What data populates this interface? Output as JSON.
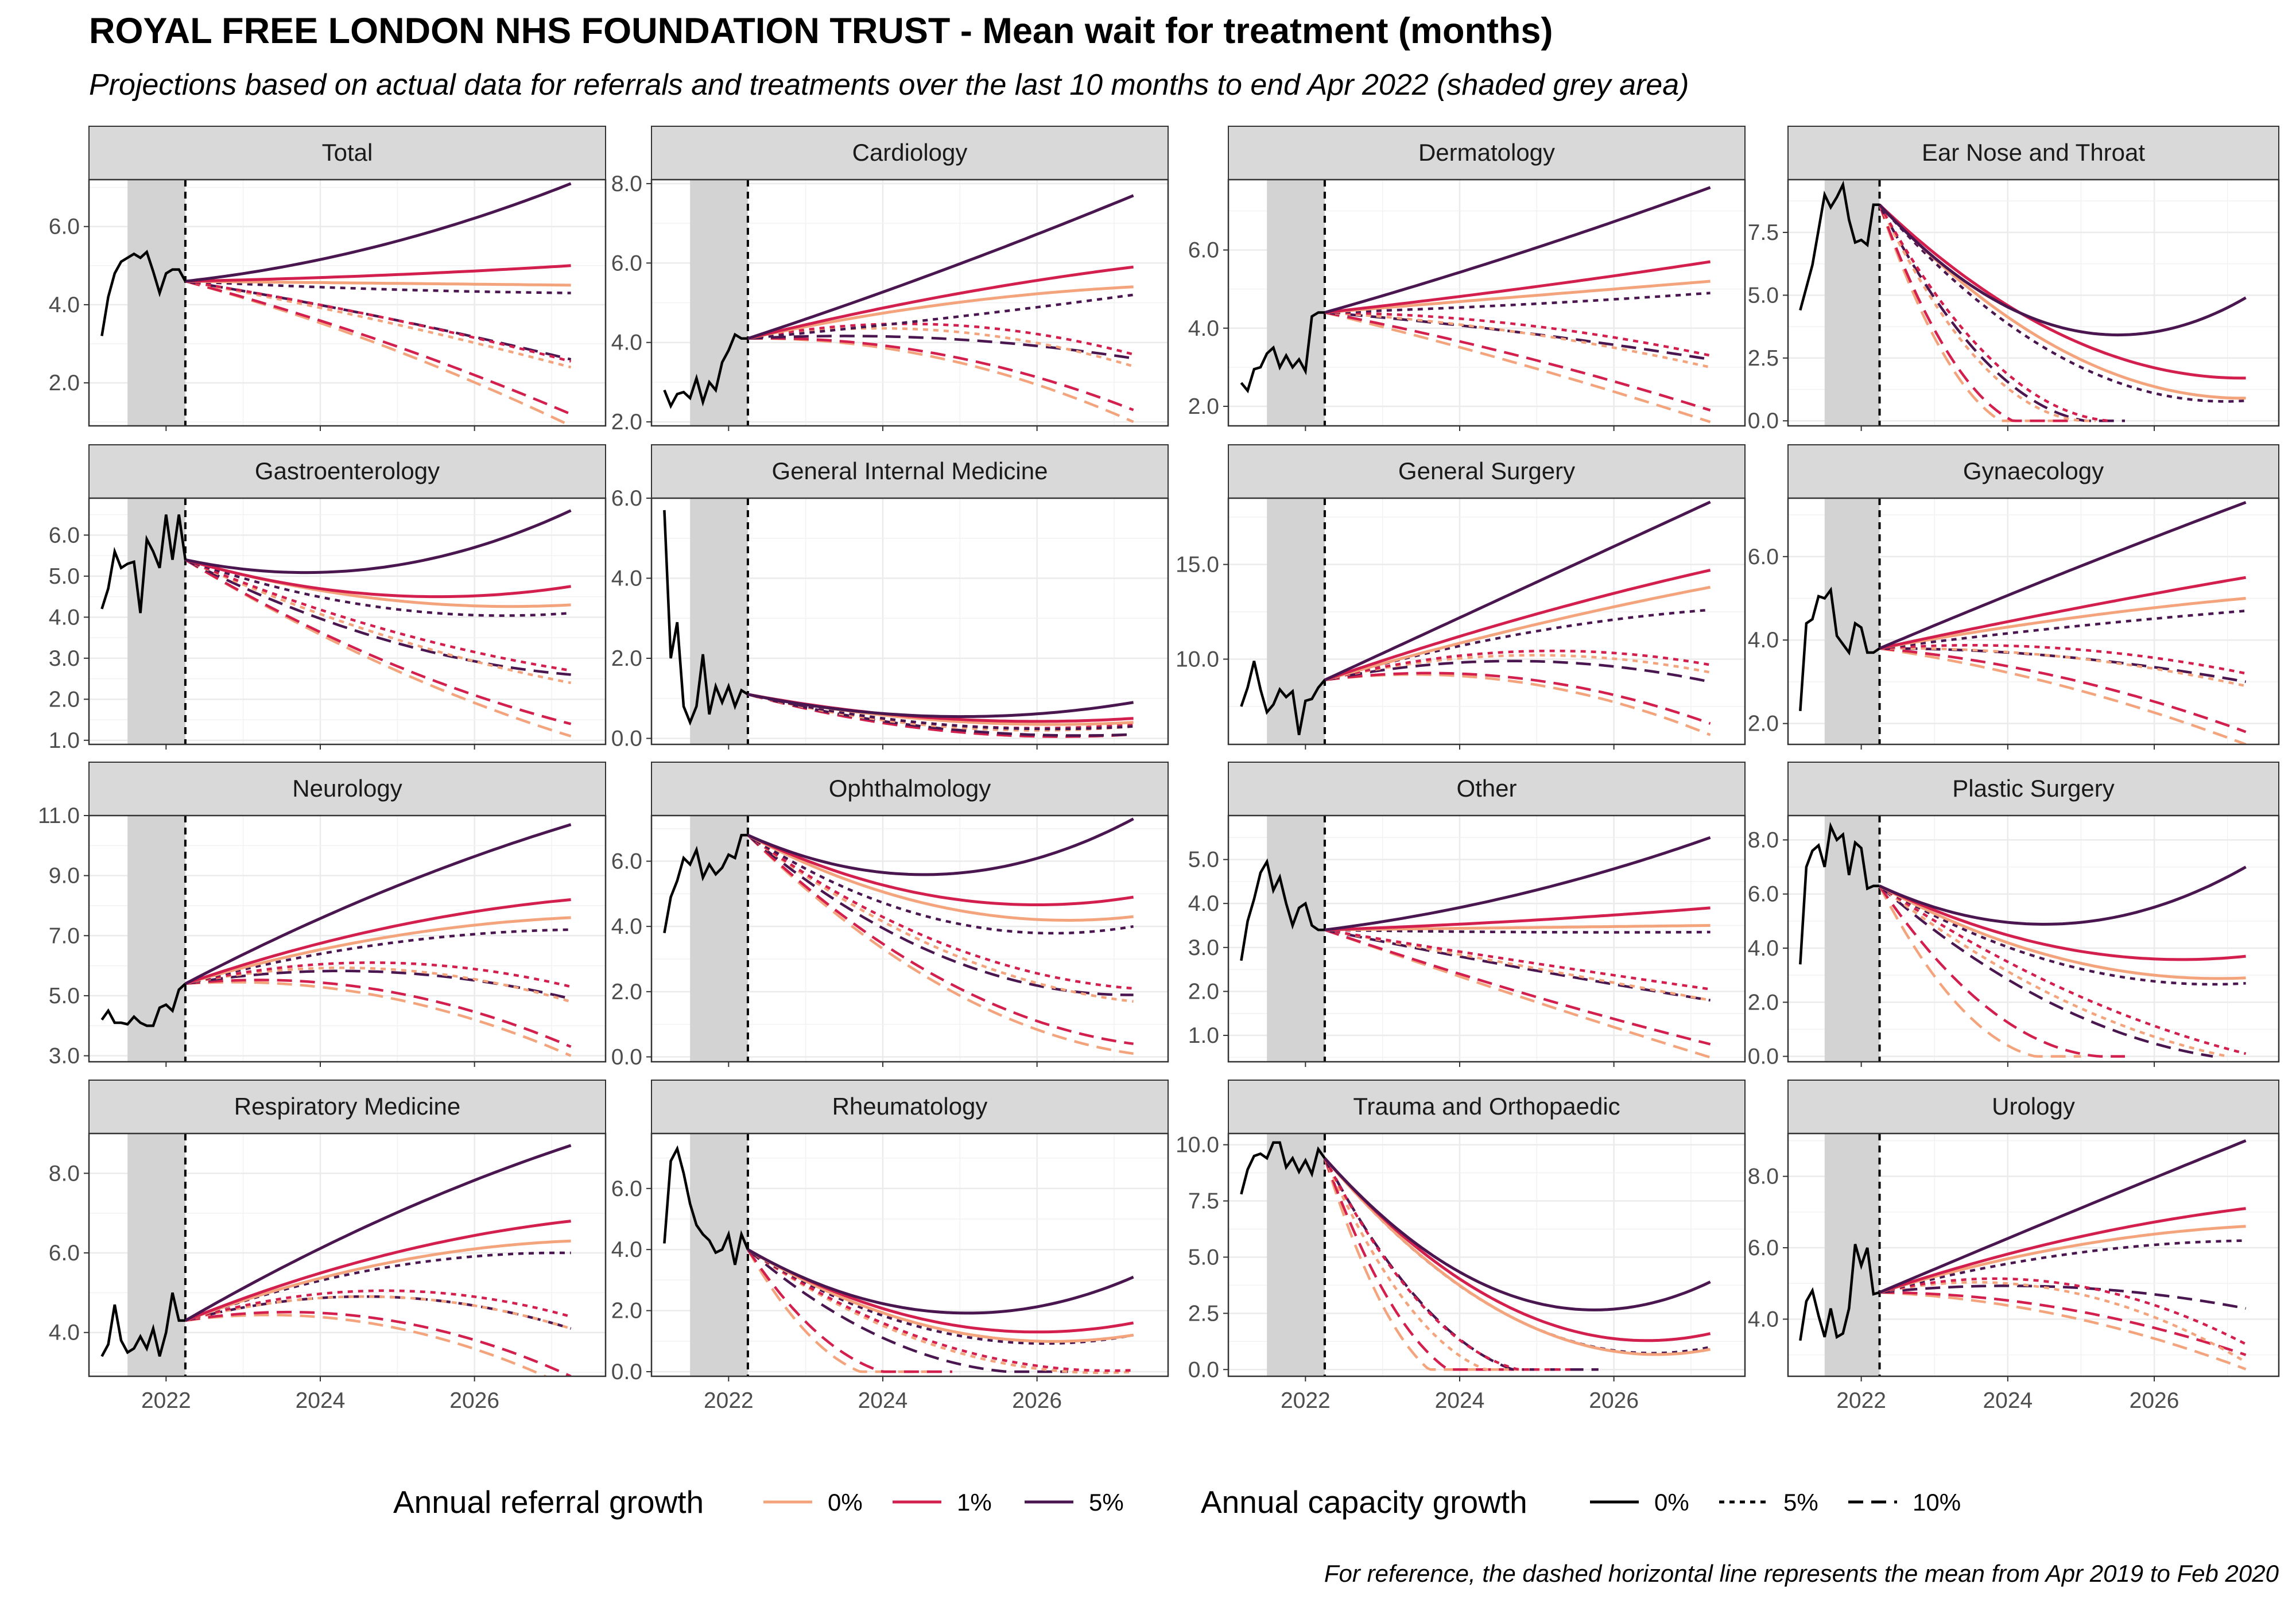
{
  "title": "ROYAL FREE LONDON NHS FOUNDATION TRUST - Mean wait for treatment (months)",
  "subtitle": "Projections based on actual data for referrals and treatments over the last 10 months to end Apr 2022 (shaded grey area)",
  "caption": "For reference, the dashed horizontal line represents the mean from Apr 2019 to Feb 2020",
  "colors": {
    "0%": "#f4a47c",
    "1%": "#d21f4d",
    "5%": "#4a1650",
    "actual": "#000000",
    "shade": "#d3d3d3",
    "strip": "#d9d9d9"
  },
  "chart_data": {
    "type": "line",
    "x_ticks": [
      "2022",
      "2024",
      "2026"
    ],
    "x_range": [
      2021.0,
      2027.7
    ],
    "shaded_period": [
      "2021-07",
      "2022-04"
    ],
    "projection_start": "2022-04",
    "projection_end": "2027-04",
    "legend": {
      "referral_title": "Annual referral growth",
      "referral_items": [
        "0%",
        "1%",
        "5%"
      ],
      "capacity_title": "Annual capacity growth",
      "capacity_items": [
        "0%",
        "5%",
        "10%"
      ]
    },
    "panels": [
      {
        "title": "Total",
        "ylim": [
          0.9,
          7.2
        ],
        "yticks": [
          "2.0",
          "4.0",
          "6.0"
        ],
        "actual": [
          3.2,
          4.2,
          4.8,
          5.1,
          5.2,
          5.3,
          5.2,
          5.35,
          4.85,
          4.3,
          4.8,
          4.9,
          4.9,
          4.6
        ],
        "endpoints": {
          "0_0": 4.5,
          "1_0": 5.0,
          "5_0": 7.1,
          "0_5": 2.4,
          "1_5": 2.55,
          "5_5": 4.3,
          "0_10": 0.9,
          "1_10": 1.2,
          "5_10": 2.6
        },
        "mid": {
          "0_0": 4.55,
          "1_0": 4.75,
          "5_0": 5.5,
          "0_5": 3.6,
          "1_5": 3.7,
          "5_5": 4.4,
          "0_10": 3.0,
          "1_10": 3.1,
          "5_10": 3.7
        }
      },
      {
        "title": "Cardiology",
        "ylim": [
          1.9,
          8.1
        ],
        "yticks": [
          "2.0",
          "4.0",
          "6.0",
          "8.0"
        ],
        "actual": [
          2.8,
          2.4,
          2.7,
          2.75,
          2.6,
          3.1,
          2.5,
          3.0,
          2.8,
          3.5,
          3.8,
          4.2,
          4.1,
          4.1
        ],
        "endpoints": {
          "0_0": 5.4,
          "1_0": 5.9,
          "5_0": 7.7,
          "0_5": 3.4,
          "1_5": 3.7,
          "5_5": 5.2,
          "0_10": 2.0,
          "1_10": 2.3,
          "5_10": 3.6
        },
        "mid": {
          "0_0": 4.95,
          "1_0": 5.15,
          "5_0": 5.8,
          "0_5": 4.3,
          "1_5": 4.45,
          "5_5": 4.6,
          "0_10": 3.6,
          "1_10": 3.7,
          "5_10": 4.1
        }
      },
      {
        "title": "Dermatology",
        "ylim": [
          1.5,
          7.8
        ],
        "yticks": [
          "2.0",
          "4.0",
          "6.0"
        ],
        "actual": [
          2.6,
          2.4,
          2.95,
          3.0,
          3.35,
          3.5,
          3.0,
          3.3,
          3.0,
          3.2,
          2.9,
          4.3,
          4.4,
          4.4
        ],
        "endpoints": {
          "0_0": 5.2,
          "1_0": 5.7,
          "5_0": 7.6,
          "0_5": 3.0,
          "1_5": 3.3,
          "5_5": 4.9,
          "0_10": 1.6,
          "1_10": 1.9,
          "5_10": 3.2
        },
        "mid": {
          "0_0": 4.8,
          "1_0": 5.0,
          "5_0": 5.9,
          "0_5": 3.9,
          "1_5": 4.1,
          "5_5": 4.6,
          "0_10": 3.1,
          "1_10": 3.3,
          "5_10": 3.9
        }
      },
      {
        "title": "Ear Nose and Throat",
        "ylim": [
          -0.2,
          9.6
        ],
        "yticks": [
          "0.0",
          "2.5",
          "5.0",
          "7.5"
        ],
        "actual": [
          4.4,
          5.3,
          6.2,
          7.6,
          9.0,
          8.5,
          8.9,
          9.4,
          8.0,
          7.1,
          7.2,
          7.0,
          8.6,
          8.6
        ],
        "endpoints": {
          "0_0": 0.9,
          "1_0": 1.7,
          "5_0": 4.9,
          "0_5": 0.0,
          "1_5": 0.0,
          "5_5": 0.8,
          "0_10": 0.0,
          "1_10": 0.0,
          "5_10": 0.0
        },
        "zero_at": {
          "0_5": 2025.2,
          "1_5": 2025.4,
          "0_10": 2024.8,
          "1_10": 2024.9,
          "5_10": 2025.6
        },
        "mid": {
          "0_0": 2.8,
          "1_0": 3.4,
          "5_0": 3.7,
          "0_5": 1.9,
          "1_5": 2.2,
          "5_5": 2.5,
          "0_10": 0.8,
          "1_10": 1.0,
          "5_10": 1.6
        }
      },
      {
        "title": "Gastroenterology",
        "ylim": [
          0.9,
          6.9
        ],
        "yticks": [
          "1.0",
          "2.0",
          "3.0",
          "4.0",
          "5.0",
          "6.0"
        ],
        "actual": [
          4.2,
          4.7,
          5.6,
          5.2,
          5.3,
          5.35,
          4.1,
          5.9,
          5.6,
          5.2,
          6.5,
          5.4,
          6.5,
          5.4
        ],
        "endpoints": {
          "0_0": 4.3,
          "1_0": 4.75,
          "5_0": 6.6,
          "0_5": 2.4,
          "1_5": 2.7,
          "5_5": 4.1,
          "0_10": 1.1,
          "1_10": 1.4,
          "5_10": 2.6
        },
        "mid": {
          "0_0": 4.45,
          "1_0": 4.55,
          "5_0": 5.2,
          "0_5": 3.6,
          "1_5": 3.75,
          "5_5": 4.25,
          "0_10": 2.9,
          "1_10": 3.0,
          "5_10": 3.5
        }
      },
      {
        "title": "General Internal Medicine",
        "ylim": [
          -0.15,
          6.0
        ],
        "yticks": [
          "0.0",
          "2.0",
          "4.0",
          "6.0"
        ],
        "actual": [
          5.7,
          2.0,
          2.9,
          0.8,
          0.4,
          0.8,
          2.1,
          0.6,
          1.3,
          0.9,
          1.3,
          0.8,
          1.2,
          1.1
        ],
        "endpoints": {
          "0_0": 0.4,
          "1_0": 0.5,
          "5_0": 0.9,
          "0_5": 0.3,
          "1_5": 0.35,
          "5_5": 0.3,
          "0_10": 0.1,
          "1_10": 0.1,
          "5_10": 0.1
        },
        "mid": {
          "0_0": 0.45,
          "1_0": 0.5,
          "5_0": 0.55,
          "0_5": 0.3,
          "1_5": 0.35,
          "5_5": 0.35,
          "0_10": 0.2,
          "1_10": 0.2,
          "5_10": 0.25
        }
      },
      {
        "title": "General Surgery",
        "ylim": [
          5.5,
          18.5
        ],
        "yticks": [
          "10.0",
          "15.0"
        ],
        "actual": [
          7.5,
          8.5,
          9.9,
          8.4,
          7.2,
          7.6,
          8.4,
          8.0,
          8.3,
          6.0,
          7.8,
          7.9,
          8.5,
          8.9
        ],
        "endpoints": {
          "0_0": 13.8,
          "1_0": 14.7,
          "5_0": 18.3,
          "0_5": 9.3,
          "1_5": 9.7,
          "5_5": 12.6,
          "0_10": 6.0,
          "1_10": 6.6,
          "5_10": 8.8
        },
        "mid": {
          "0_0": 11.6,
          "1_0": 12.1,
          "5_0": 13.6,
          "0_5": 10.2,
          "1_5": 10.4,
          "5_5": 11.3,
          "0_10": 8.8,
          "1_10": 9.0,
          "5_10": 9.9
        }
      },
      {
        "title": "Gynaecology",
        "ylim": [
          1.5,
          7.4
        ],
        "yticks": [
          "2.0",
          "4.0",
          "6.0"
        ],
        "actual": [
          2.3,
          4.4,
          4.5,
          5.05,
          5.0,
          5.2,
          4.1,
          3.9,
          3.7,
          4.4,
          4.3,
          3.7,
          3.7,
          3.8
        ],
        "endpoints": {
          "0_0": 5.0,
          "1_0": 5.5,
          "5_0": 7.3,
          "0_5": 2.9,
          "1_5": 3.2,
          "5_5": 4.7,
          "0_10": 1.5,
          "1_10": 1.8,
          "5_10": 3.0
        },
        "mid": {
          "0_0": 4.5,
          "1_0": 4.7,
          "5_0": 5.6,
          "0_5": 3.6,
          "1_5": 3.8,
          "5_5": 4.3,
          "0_10": 2.9,
          "1_10": 3.1,
          "5_10": 3.6
        }
      },
      {
        "title": "Neurology",
        "ylim": [
          2.8,
          11.0
        ],
        "yticks": [
          "3.0",
          "5.0",
          "7.0",
          "9.0",
          "11.0"
        ],
        "actual": [
          4.2,
          4.5,
          4.1,
          4.1,
          4.05,
          4.3,
          4.1,
          4.0,
          4.0,
          4.6,
          4.7,
          4.5,
          5.2,
          5.4
        ],
        "endpoints": {
          "0_0": 7.6,
          "1_0": 8.2,
          "5_0": 10.7,
          "0_5": 4.8,
          "1_5": 5.3,
          "5_5": 7.2,
          "0_10": 3.0,
          "1_10": 3.3,
          "5_10": 4.9
        },
        "mid": {
          "0_0": 6.9,
          "1_0": 7.2,
          "5_0": 8.4,
          "0_5": 5.9,
          "1_5": 6.1,
          "5_5": 6.7,
          "0_10": 5.0,
          "1_10": 5.2,
          "5_10": 5.8
        }
      },
      {
        "title": "Ophthalmology",
        "ylim": [
          -0.15,
          7.4
        ],
        "yticks": [
          "0.0",
          "2.0",
          "4.0",
          "6.0"
        ],
        "actual": [
          3.8,
          4.9,
          5.4,
          6.1,
          5.9,
          6.35,
          5.5,
          5.9,
          5.6,
          5.8,
          6.2,
          6.1,
          6.8,
          6.8
        ],
        "endpoints": {
          "0_0": 4.3,
          "1_0": 4.9,
          "5_0": 7.3,
          "0_5": 1.7,
          "1_5": 2.1,
          "5_5": 4.0,
          "0_10": 0.1,
          "1_10": 0.4,
          "5_10": 1.9
        },
        "mid": {
          "0_0": 4.6,
          "1_0": 4.9,
          "5_0": 5.6,
          "0_5": 3.3,
          "1_5": 3.5,
          "5_5": 4.2,
          "0_10": 2.2,
          "1_10": 2.4,
          "5_10": 3.1
        }
      },
      {
        "title": "Other",
        "ylim": [
          0.4,
          6.0
        ],
        "yticks": [
          "1.0",
          "2.0",
          "3.0",
          "4.0",
          "5.0"
        ],
        "actual": [
          2.7,
          3.6,
          4.1,
          4.7,
          4.95,
          4.3,
          4.6,
          4.0,
          3.5,
          3.9,
          4.0,
          3.5,
          3.4,
          3.4
        ],
        "endpoints": {
          "0_0": 3.5,
          "1_0": 3.9,
          "5_0": 5.5,
          "0_5": 1.8,
          "1_5": 2.05,
          "5_5": 3.35,
          "0_10": 0.5,
          "1_10": 0.8,
          "5_10": 1.8
        },
        "mid": {
          "0_0": 3.45,
          "1_0": 3.6,
          "5_0": 4.2,
          "0_5": 2.6,
          "1_5": 2.7,
          "5_5": 3.35,
          "0_10": 1.9,
          "1_10": 2.0,
          "5_10": 2.55
        }
      },
      {
        "title": "Plastic Surgery",
        "ylim": [
          -0.2,
          8.9
        ],
        "yticks": [
          "0.0",
          "2.0",
          "4.0",
          "6.0",
          "8.0"
        ],
        "actual": [
          3.4,
          7.0,
          7.6,
          7.8,
          7.0,
          8.5,
          8.0,
          8.2,
          6.7,
          7.9,
          7.7,
          6.2,
          6.3,
          6.3
        ],
        "endpoints": {
          "0_0": 2.9,
          "1_0": 3.7,
          "5_0": 7.0,
          "0_5": 0.0,
          "1_5": 0.1,
          "5_5": 2.7,
          "0_10": 0.0,
          "1_10": 0.0,
          "5_10": 0.0
        },
        "zero_at": {
          "0_10": 2025.0,
          "1_10": 2025.6,
          "5_10": 2026.8,
          "0_5": 2027.0
        },
        "mid": {
          "0_0": 3.6,
          "1_0": 4.0,
          "5_0": 4.9,
          "0_5": 2.2,
          "1_5": 2.5,
          "5_5": 3.4,
          "0_10": 1.0,
          "1_10": 1.3,
          "5_10": 2.0
        }
      },
      {
        "title": "Respiratory Medicine",
        "ylim": [
          2.9,
          9.0
        ],
        "yticks": [
          "4.0",
          "6.0",
          "8.0"
        ],
        "actual": [
          3.4,
          3.7,
          4.7,
          3.8,
          3.5,
          3.6,
          3.9,
          3.6,
          4.1,
          3.4,
          4.0,
          5.0,
          4.3,
          4.3
        ],
        "endpoints": {
          "0_0": 6.3,
          "1_0": 6.8,
          "5_0": 8.7,
          "0_5": 4.1,
          "1_5": 4.4,
          "5_5": 6.0,
          "0_10": 2.6,
          "1_10": 2.9,
          "5_10": 4.1
        },
        "mid": {
          "0_0": 5.7,
          "1_0": 5.9,
          "5_0": 6.8,
          "0_5": 4.9,
          "1_5": 5.05,
          "5_5": 5.6,
          "0_10": 4.2,
          "1_10": 4.35,
          "5_10": 4.9
        }
      },
      {
        "title": "Rheumatology",
        "ylim": [
          -0.15,
          7.8
        ],
        "yticks": [
          "0.0",
          "2.0",
          "4.0",
          "6.0"
        ],
        "actual": [
          4.2,
          6.9,
          7.3,
          6.5,
          5.5,
          4.8,
          4.5,
          4.3,
          3.9,
          4.0,
          4.5,
          3.5,
          4.5,
          4.0
        ],
        "endpoints": {
          "0_0": 1.2,
          "1_0": 1.6,
          "5_0": 3.1,
          "0_5": 0.0,
          "1_5": 0.05,
          "5_5": 1.2,
          "0_10": 0.0,
          "1_10": 0.0,
          "5_10": 0.0
        },
        "zero_at": {
          "0_10": 2024.6,
          "1_10": 2024.9,
          "5_10": 2026.4
        },
        "mid": {
          "0_0": 1.4,
          "1_0": 1.6,
          "5_0": 1.95,
          "0_5": 0.8,
          "1_5": 0.9,
          "5_5": 1.3,
          "0_10": 0.3,
          "1_10": 0.4,
          "5_10": 0.7
        }
      },
      {
        "title": "Trauma and Orthopaedic",
        "ylim": [
          -0.3,
          10.5
        ],
        "yticks": [
          "0.0",
          "2.5",
          "5.0",
          "7.5",
          "10.0"
        ],
        "actual": [
          7.8,
          8.9,
          9.5,
          9.6,
          9.4,
          10.1,
          10.1,
          9.0,
          9.4,
          8.8,
          9.3,
          8.7,
          9.8,
          9.4
        ],
        "endpoints": {
          "0_0": 0.9,
          "1_0": 1.6,
          "5_0": 3.9,
          "0_5": 0.0,
          "1_5": 0.0,
          "5_5": 1.0,
          "0_10": 0.0,
          "1_10": 0.0,
          "5_10": 0.0
        },
        "zero_at": {
          "0_10": 2024.6,
          "1_10": 2024.9,
          "5_10": 2025.8,
          "0_5": 2025.2,
          "1_5": 2025.5
        },
        "mid": {
          "0_0": 2.2,
          "1_0": 2.6,
          "5_0": 3.2,
          "0_5": 1.2,
          "1_5": 1.5,
          "5_5": 2.2,
          "0_10": 0.4,
          "1_10": 0.6,
          "5_10": 1.1
        }
      },
      {
        "title": "Urology",
        "ylim": [
          2.4,
          9.2
        ],
        "yticks": [
          "4.0",
          "6.0",
          "8.0"
        ],
        "actual": [
          3.4,
          4.5,
          4.8,
          4.1,
          3.5,
          4.3,
          3.5,
          3.6,
          4.3,
          6.1,
          5.5,
          6.0,
          4.7,
          4.75
        ],
        "endpoints": {
          "0_0": 6.6,
          "1_0": 7.1,
          "5_0": 9.0,
          "0_5": 2.8,
          "1_5": 3.3,
          "5_5": 6.2,
          "0_10": 2.6,
          "1_10": 3.0,
          "5_10": 4.3
        },
        "mid": {
          "0_0": 6.0,
          "1_0": 6.2,
          "5_0": 6.9,
          "0_5": 4.8,
          "1_5": 5.0,
          "5_5": 5.8,
          "0_10": 4.1,
          "1_10": 4.3,
          "5_10": 4.9
        }
      }
    ]
  }
}
